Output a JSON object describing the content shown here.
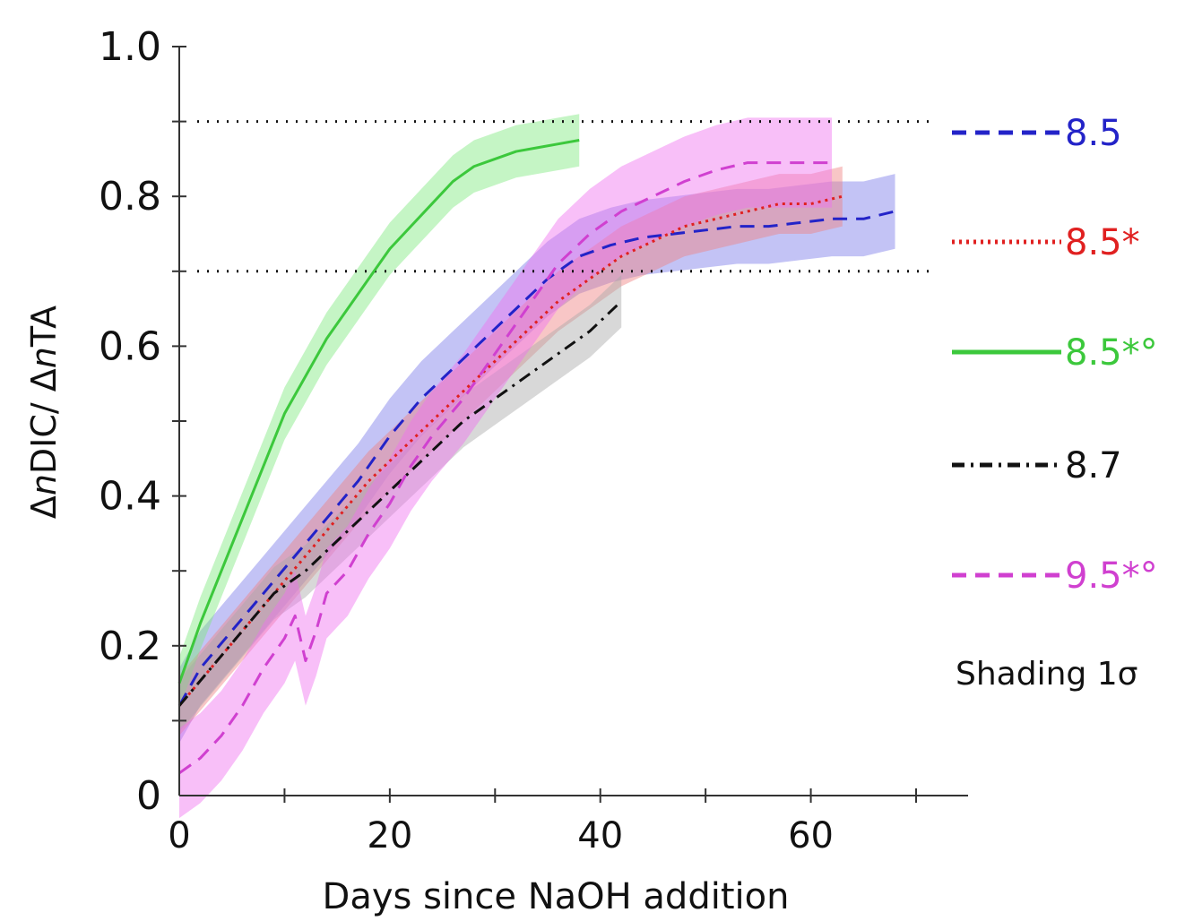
{
  "chart_data": {
    "type": "line",
    "xlabel": "Days since NaOH addition",
    "ylabel": "ΔnDIC/ ΔnTA",
    "xlim": [
      0,
      72
    ],
    "ylim": [
      0,
      1.0
    ],
    "x_ticks": [
      0,
      20,
      40,
      60
    ],
    "y_ticks": [
      0,
      0.2,
      0.4,
      0.6,
      0.8,
      1.0
    ],
    "x_tick_labels": [
      "0",
      "20",
      "40",
      "60"
    ],
    "y_tick_labels": [
      "0",
      "0.2",
      "0.4",
      "0.6",
      "0.8",
      "1.0"
    ],
    "reference_lines": [
      0.9,
      0.7
    ],
    "shading_note": "Shading 1σ",
    "legend_position": "right",
    "series": [
      {
        "name": "8.5",
        "color": "#2323c8",
        "fill": "#7a7ae8",
        "dash": "dashed",
        "x": [
          0,
          2,
          5,
          8,
          11,
          14,
          17,
          20,
          23,
          26,
          29,
          32,
          35,
          38,
          41,
          44,
          47,
          50,
          53,
          56,
          59,
          62,
          65,
          68
        ],
        "y": [
          0.12,
          0.17,
          0.22,
          0.27,
          0.32,
          0.37,
          0.42,
          0.48,
          0.53,
          0.57,
          0.61,
          0.65,
          0.69,
          0.72,
          0.735,
          0.745,
          0.75,
          0.755,
          0.76,
          0.76,
          0.765,
          0.77,
          0.77,
          0.78
        ],
        "sd": 0.05
      },
      {
        "name": "8.5*",
        "color": "#e02020",
        "fill": "#f08080",
        "dash": "dotted",
        "x": [
          0,
          3,
          6,
          9,
          12,
          15,
          18,
          21,
          24,
          27,
          30,
          33,
          36,
          39,
          42,
          45,
          48,
          51,
          54,
          57,
          60,
          63
        ],
        "y": [
          0.12,
          0.17,
          0.22,
          0.27,
          0.32,
          0.37,
          0.42,
          0.46,
          0.5,
          0.54,
          0.58,
          0.62,
          0.66,
          0.69,
          0.72,
          0.74,
          0.76,
          0.77,
          0.78,
          0.79,
          0.79,
          0.8
        ],
        "sd": 0.04
      },
      {
        "name": "8.5*°",
        "color": "#3cc83c",
        "fill": "#7ee87e",
        "dash": "solid",
        "x": [
          0,
          2,
          4,
          6,
          8,
          10,
          12,
          14,
          16,
          18,
          20,
          22,
          24,
          26,
          28,
          30,
          32,
          34,
          36,
          38
        ],
        "y": [
          0.15,
          0.23,
          0.3,
          0.37,
          0.44,
          0.51,
          0.56,
          0.61,
          0.65,
          0.69,
          0.73,
          0.76,
          0.79,
          0.82,
          0.84,
          0.85,
          0.86,
          0.865,
          0.87,
          0.875
        ],
        "sd": 0.035
      },
      {
        "name": "8.7",
        "color": "#111111",
        "fill": "#a8a8a8",
        "dash": "dashdot",
        "x": [
          0,
          3,
          6,
          9,
          12,
          15,
          18,
          21,
          24,
          27,
          30,
          33,
          36,
          39,
          42
        ],
        "y": [
          0.12,
          0.17,
          0.22,
          0.27,
          0.3,
          0.34,
          0.38,
          0.42,
          0.46,
          0.5,
          0.53,
          0.56,
          0.59,
          0.62,
          0.66
        ],
        "sd": 0.035
      },
      {
        "name": "9.5*°",
        "color": "#d040d0",
        "fill": "#f070f0",
        "dash": "dashed",
        "x": [
          0,
          2,
          4,
          6,
          8,
          10,
          11,
          12,
          13,
          14,
          16,
          18,
          20,
          22,
          24,
          27,
          30,
          33,
          36,
          39,
          42,
          45,
          48,
          51,
          54,
          57,
          60,
          62
        ],
        "y": [
          0.03,
          0.05,
          0.08,
          0.12,
          0.17,
          0.21,
          0.24,
          0.18,
          0.22,
          0.27,
          0.3,
          0.35,
          0.39,
          0.44,
          0.48,
          0.53,
          0.59,
          0.65,
          0.71,
          0.75,
          0.78,
          0.8,
          0.82,
          0.835,
          0.845,
          0.845,
          0.845,
          0.845
        ],
        "sd": 0.06
      }
    ]
  }
}
